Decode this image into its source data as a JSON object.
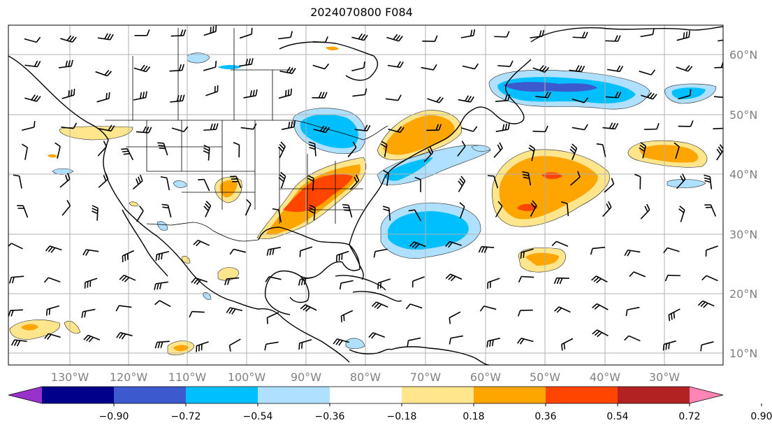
{
  "title": "2024070800 F084",
  "map": {
    "longitude_labels": [
      "130°W",
      "120°W",
      "110°W",
      "100°W",
      "90°W",
      "80°W",
      "70°W",
      "60°W",
      "50°W",
      "40°W",
      "30°W"
    ],
    "latitude_labels": [
      "60°N",
      "50°N",
      "40°N",
      "30°N",
      "20°N",
      "10°N"
    ],
    "gridlines": true,
    "overlays": [
      "coastlines",
      "country-borders",
      "us-state-borders",
      "wind-barbs",
      "filled-contours"
    ]
  },
  "colorbar": {
    "tick_labels": [
      "−0.90",
      "−0.72",
      "−0.54",
      "−0.36",
      "−0.18",
      "0.18",
      "0.36",
      "0.54",
      "0.72",
      "0.90"
    ],
    "colors": [
      "#9932cc",
      "#00008b",
      "#3c5acd",
      "#00bfff",
      "#b0e0ff",
      "#ffffff",
      "#ffe68c",
      "#ffa500",
      "#ff4500",
      "#b22222",
      "#ff85b5"
    ],
    "extend": "both"
  }
}
